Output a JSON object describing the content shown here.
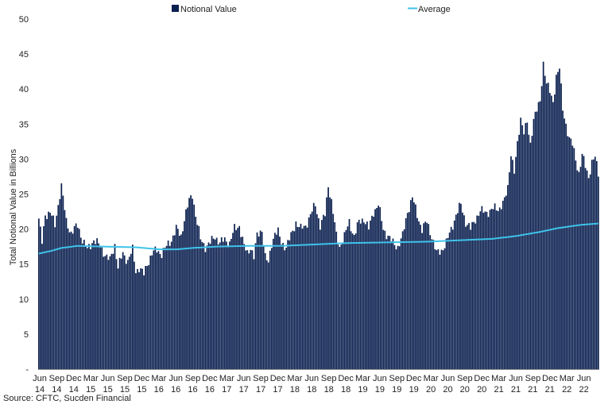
{
  "chart_data": {
    "type": "bar",
    "ylabel": "Total Notional Value in Billions",
    "ylim": [
      0,
      50
    ],
    "yticks": [
      "-",
      "5",
      "10",
      "15",
      "20",
      "25",
      "30",
      "35",
      "40",
      "45",
      "50"
    ],
    "grid": false,
    "legend_position": "top",
    "colors": {
      "bar": "#0c2150",
      "line": "#3ec3ea"
    },
    "series": [
      {
        "name": "Notional Value",
        "type": "bar"
      },
      {
        "name": "Average",
        "type": "line"
      }
    ],
    "x_month_labels": [
      "Jun",
      "Sep",
      "Dec",
      "Mar",
      "Jun",
      "Sep",
      "Dec",
      "Mar",
      "Jun",
      "Sep",
      "Dec",
      "Mar",
      "Jun",
      "Sep",
      "Dec",
      "Mar",
      "Jun",
      "Sep",
      "Dec",
      "Mar",
      "Jun",
      "Sep",
      "Dec",
      "Mar",
      "Jun",
      "Sep",
      "Dec",
      "Mar",
      "Jun",
      "Sep",
      "Dec",
      "Mar",
      "Jun"
    ],
    "x_year_labels": [
      "14",
      "14",
      "14",
      "15",
      "15",
      "15",
      "15",
      "16",
      "16",
      "16",
      "16",
      "17",
      "17",
      "17",
      "17",
      "18",
      "18",
      "18",
      "18",
      "19",
      "19",
      "19",
      "19",
      "20",
      "20",
      "20",
      "20",
      "21",
      "21",
      "21",
      "21",
      "22",
      "22"
    ],
    "bar_anchors": [
      [
        0,
        21.5
      ],
      [
        2,
        18
      ],
      [
        4,
        22
      ],
      [
        7,
        22.5
      ],
      [
        10,
        20.5
      ],
      [
        13,
        25
      ],
      [
        14,
        26.2
      ],
      [
        17,
        21
      ],
      [
        20,
        19.5
      ],
      [
        24,
        20.5
      ],
      [
        27,
        18.5
      ],
      [
        30,
        17
      ],
      [
        34,
        18.5
      ],
      [
        38,
        17.5
      ],
      [
        42,
        16
      ],
      [
        44,
        15.5
      ],
      [
        47,
        17.8
      ],
      [
        49,
        14.5
      ],
      [
        52,
        16.5
      ],
      [
        55,
        15.5
      ],
      [
        58,
        17
      ],
      [
        60,
        14
      ],
      [
        62,
        14.5
      ],
      [
        65,
        13.5
      ],
      [
        67,
        15
      ],
      [
        70,
        16.5
      ],
      [
        73,
        17
      ],
      [
        76,
        16.5
      ],
      [
        79,
        17.5
      ],
      [
        82,
        18.5
      ],
      [
        85,
        20
      ],
      [
        88,
        19
      ],
      [
        90,
        21.5
      ],
      [
        93,
        24
      ],
      [
        95,
        25
      ],
      [
        97,
        22
      ],
      [
        100,
        18.5
      ],
      [
        103,
        17.5
      ],
      [
        106,
        18
      ],
      [
        109,
        19
      ],
      [
        112,
        18
      ],
      [
        115,
        18.5
      ],
      [
        118,
        18
      ],
      [
        121,
        20
      ],
      [
        124,
        20.5
      ],
      [
        127,
        17.5
      ],
      [
        129,
        16.5
      ],
      [
        131,
        17.5
      ],
      [
        133,
        16
      ],
      [
        135,
        19
      ],
      [
        138,
        20
      ],
      [
        140,
        16
      ],
      [
        142,
        15
      ],
      [
        144,
        18
      ],
      [
        146,
        19.5
      ],
      [
        148,
        19.5
      ],
      [
        150,
        18
      ],
      [
        153,
        17.5
      ],
      [
        156,
        19
      ],
      [
        159,
        21
      ],
      [
        162,
        20
      ],
      [
        165,
        20.5
      ],
      [
        168,
        22
      ],
      [
        171,
        23.5
      ],
      [
        174,
        20.5
      ],
      [
        177,
        22
      ],
      [
        179,
        26.3
      ],
      [
        181,
        24
      ],
      [
        184,
        19
      ],
      [
        186,
        17.5
      ],
      [
        189,
        19
      ],
      [
        192,
        21
      ],
      [
        195,
        19
      ],
      [
        198,
        21
      ],
      [
        201,
        21.5
      ],
      [
        204,
        20
      ],
      [
        207,
        22.5
      ],
      [
        210,
        23.5
      ],
      [
        213,
        20
      ],
      [
        216,
        19
      ],
      [
        219,
        18
      ],
      [
        222,
        17.5
      ],
      [
        225,
        19
      ],
      [
        228,
        22.5
      ],
      [
        231,
        24.5
      ],
      [
        234,
        22
      ],
      [
        237,
        20
      ],
      [
        240,
        21
      ],
      [
        243,
        19
      ],
      [
        246,
        16.5
      ],
      [
        249,
        17
      ],
      [
        252,
        18
      ],
      [
        255,
        20
      ],
      [
        258,
        22
      ],
      [
        261,
        23.5
      ],
      [
        264,
        21
      ],
      [
        267,
        20
      ],
      [
        270,
        21.5
      ],
      [
        273,
        22.5
      ],
      [
        276,
        22.5
      ],
      [
        279,
        22.5
      ],
      [
        282,
        23
      ],
      [
        285,
        23
      ],
      [
        288,
        24
      ],
      [
        290,
        26
      ],
      [
        292,
        31
      ],
      [
        294,
        28
      ],
      [
        296,
        32
      ],
      [
        298,
        36
      ],
      [
        300,
        34
      ],
      [
        302,
        35
      ],
      [
        304,
        32
      ],
      [
        306,
        36
      ],
      [
        308,
        37
      ],
      [
        310,
        38
      ],
      [
        312,
        43.8
      ],
      [
        314,
        41
      ],
      [
        316,
        39.5
      ],
      [
        318,
        38
      ],
      [
        320,
        42
      ],
      [
        322,
        43
      ],
      [
        324,
        37
      ],
      [
        326,
        35
      ],
      [
        328,
        33
      ],
      [
        330,
        32
      ],
      [
        332,
        30
      ],
      [
        334,
        28
      ],
      [
        336,
        30.5
      ],
      [
        338,
        29
      ],
      [
        340,
        27.5
      ],
      [
        342,
        29.5
      ],
      [
        344,
        30.2
      ],
      [
        346,
        28
      ]
    ],
    "avg_anchors": [
      [
        0,
        16.5
      ],
      [
        8,
        16.9
      ],
      [
        14,
        17.3
      ],
      [
        24,
        17.6
      ],
      [
        40,
        17.5
      ],
      [
        60,
        17.4
      ],
      [
        75,
        17.1
      ],
      [
        85,
        17.1
      ],
      [
        95,
        17.3
      ],
      [
        110,
        17.5
      ],
      [
        130,
        17.6
      ],
      [
        150,
        17.6
      ],
      [
        170,
        17.8
      ],
      [
        190,
        18
      ],
      [
        215,
        18.1
      ],
      [
        240,
        18.2
      ],
      [
        260,
        18.4
      ],
      [
        280,
        18.6
      ],
      [
        295,
        19
      ],
      [
        310,
        19.6
      ],
      [
        320,
        20.1
      ],
      [
        335,
        20.6
      ],
      [
        346,
        20.8
      ]
    ]
  },
  "legend": {
    "bar_label": "Notional Value",
    "line_label": "Average"
  },
  "source": "Source: CFTC, Sucden Financial"
}
